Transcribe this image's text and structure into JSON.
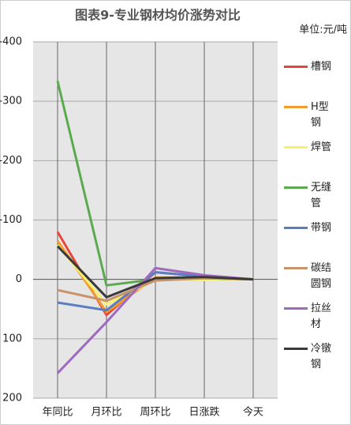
{
  "chart_data": {
    "type": "line",
    "title": "图表9-专业钢材均价涨势对比",
    "unit": "单位:元/吨",
    "categories": [
      "年同比",
      "月环比",
      "周环比",
      "日涨跌",
      "今天"
    ],
    "ylim": [
      200,
      -400
    ],
    "yticks": [
      200,
      100,
      0,
      -100,
      -200,
      -300,
      -400
    ],
    "grid": true,
    "series": [
      {
        "name": "槽钢",
        "color": "#e8463a",
        "values": [
          -80,
          60,
          -12,
          -5,
          0
        ]
      },
      {
        "name": "H型钢",
        "color": "#f59a2e",
        "values": [
          -65,
          55,
          -3,
          -3,
          0
        ]
      },
      {
        "name": "焊管",
        "color": "#f9f26a",
        "values": [
          -58,
          42,
          1,
          1,
          0
        ]
      },
      {
        "name": "无缝管",
        "color": "#5aaa4e",
        "values": [
          -334,
          10,
          0,
          -2,
          0
        ]
      },
      {
        "name": "带钢",
        "color": "#5a7fc0",
        "values": [
          39,
          52,
          -12,
          -5,
          0
        ]
      },
      {
        "name": "碳结圆钢",
        "color": "#c8926a",
        "values": [
          18,
          36,
          2,
          -2,
          0
        ]
      },
      {
        "name": "拉丝材",
        "color": "#a069c0",
        "values": [
          158,
          72,
          -19,
          -7,
          0
        ]
      },
      {
        "name": "冷镦钢",
        "color": "#3a3a3a",
        "values": [
          -56,
          30,
          -2,
          -4,
          0
        ]
      }
    ]
  }
}
